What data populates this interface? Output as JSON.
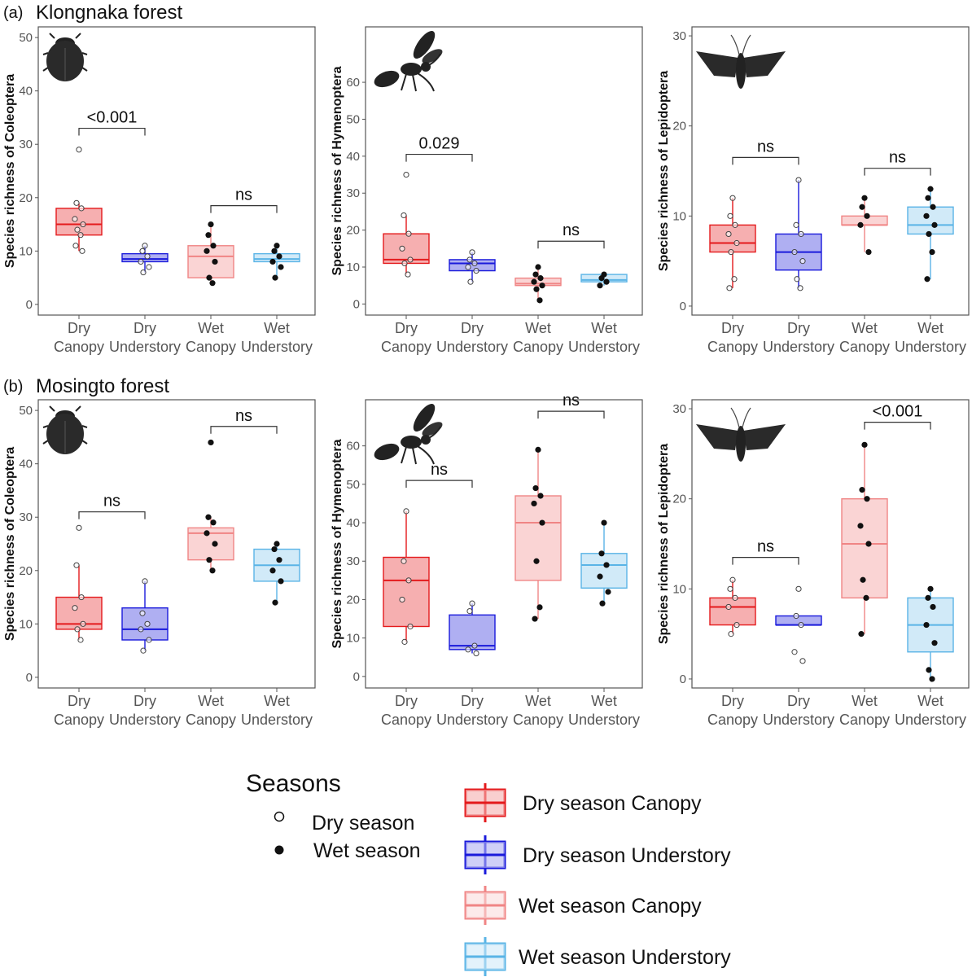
{
  "colors": {
    "dry_canopy": "#e41a1c",
    "dry_understory": "#1a1adb",
    "wet_canopy": "#f08585",
    "wet_understory": "#5ab4e6"
  },
  "row_titles": [
    {
      "letter": "(a)",
      "name": "Klongnaka forest"
    },
    {
      "letter": "(b)",
      "name": "Mosingto forest"
    }
  ],
  "category_labels": [
    [
      "Dry",
      "Canopy"
    ],
    [
      "Dry",
      "Understory"
    ],
    [
      "Wet",
      "Canopy"
    ],
    [
      "Wet",
      "Understory"
    ]
  ],
  "legend": {
    "title": "Seasons",
    "shape_items": [
      {
        "label": "Dry season",
        "shape": "open-circle"
      },
      {
        "label": "Wet season",
        "shape": "filled-circle"
      }
    ],
    "box_items": [
      {
        "label": "Dry season Canopy",
        "color_key": "dry_canopy"
      },
      {
        "label": "Dry season Understory",
        "color_key": "dry_understory"
      },
      {
        "label": "Wet season Canopy",
        "color_key": "wet_canopy"
      },
      {
        "label": "Wet season Understory",
        "color_key": "wet_understory"
      }
    ]
  },
  "chart_data": [
    {
      "type": "box",
      "panel": "(a) Klongnaka forest - Coleoptera",
      "icon": "beetle-icon",
      "ylabel": "Species richness of Coleoptera",
      "ylim": [
        -2,
        52
      ],
      "yticks": [
        0,
        10,
        20,
        30,
        40,
        50
      ],
      "groups": [
        {
          "name": "Dry Canopy",
          "q1": 13,
          "median": 15,
          "q3": 18,
          "whisker_low": 10,
          "whisker_high": 19,
          "points": [
            29,
            19,
            18,
            16,
            15,
            14,
            13,
            11,
            10
          ],
          "filled": false
        },
        {
          "name": "Dry Understory",
          "q1": 8,
          "median": 8.5,
          "q3": 9.5,
          "whisker_low": 6,
          "whisker_high": 11,
          "points": [
            11,
            10,
            9,
            8,
            7,
            6
          ],
          "filled": false
        },
        {
          "name": "Wet Canopy",
          "q1": 5,
          "median": 9,
          "q3": 11,
          "whisker_low": 4,
          "whisker_high": 15,
          "points": [
            15,
            13,
            11,
            10,
            8,
            5,
            4
          ],
          "filled": true
        },
        {
          "name": "Wet Understory",
          "q1": 8,
          "median": 8.5,
          "q3": 9.5,
          "whisker_low": 5,
          "whisker_high": 11,
          "points": [
            11,
            10,
            9,
            8,
            7,
            5
          ],
          "filled": true
        }
      ],
      "comparisons": [
        {
          "from": 0,
          "to": 1,
          "y": 33,
          "label": "<0.001"
        },
        {
          "from": 2,
          "to": 3,
          "y": 18.5,
          "label": "ns"
        }
      ]
    },
    {
      "type": "box",
      "panel": "(a) Klongnaka forest - Hymenoptera",
      "icon": "wasp-icon",
      "ylabel": "Species richness of Hymenoptera",
      "ylim": [
        -3,
        75
      ],
      "yticks": [
        0,
        10,
        20,
        30,
        40,
        50,
        60
      ],
      "groups": [
        {
          "name": "Dry Canopy",
          "q1": 11,
          "median": 12,
          "q3": 19,
          "whisker_low": 8,
          "whisker_high": 24,
          "points": [
            35,
            24,
            19,
            15,
            12,
            11,
            8
          ],
          "filled": false
        },
        {
          "name": "Dry Understory",
          "q1": 9,
          "median": 11,
          "q3": 12,
          "whisker_low": 6,
          "whisker_high": 14,
          "points": [
            14,
            12,
            11,
            10,
            9,
            6
          ],
          "filled": false
        },
        {
          "name": "Wet Canopy",
          "q1": 5,
          "median": 5.5,
          "q3": 7,
          "whisker_low": 1,
          "whisker_high": 10,
          "points": [
            10,
            8,
            7,
            6,
            5,
            4,
            1
          ],
          "filled": true
        },
        {
          "name": "Wet Understory",
          "q1": 6,
          "median": 6.5,
          "q3": 8,
          "whisker_low": 5,
          "whisker_high": 8,
          "points": [
            8,
            7,
            6,
            5
          ],
          "filled": true
        }
      ],
      "comparisons": [
        {
          "from": 0,
          "to": 1,
          "y": 40.5,
          "label": "0.029"
        },
        {
          "from": 2,
          "to": 3,
          "y": 17,
          "label": "ns"
        }
      ]
    },
    {
      "type": "box",
      "panel": "(a) Klongnaka forest - Lepidoptera",
      "icon": "moth-icon",
      "ylabel": "Species richness of Lepidoptera",
      "ylim": [
        -1,
        31
      ],
      "yticks": [
        0,
        10,
        20,
        30
      ],
      "groups": [
        {
          "name": "Dry Canopy",
          "q1": 6,
          "median": 7,
          "q3": 9,
          "whisker_low": 2,
          "whisker_high": 12,
          "points": [
            12,
            10,
            9,
            8,
            7,
            6,
            3,
            2
          ],
          "filled": false
        },
        {
          "name": "Dry Understory",
          "q1": 4,
          "median": 6,
          "q3": 8,
          "whisker_low": 2,
          "whisker_high": 14,
          "points": [
            14,
            9,
            8,
            6,
            5,
            3,
            2
          ],
          "filled": false
        },
        {
          "name": "Wet Canopy",
          "q1": 9,
          "median": 9,
          "q3": 10,
          "whisker_low": 6,
          "whisker_high": 12,
          "points": [
            12,
            11,
            10,
            9,
            6
          ],
          "filled": true
        },
        {
          "name": "Wet Understory",
          "q1": 8,
          "median": 9,
          "q3": 11,
          "whisker_low": 3,
          "whisker_high": 13,
          "points": [
            13,
            12,
            11,
            10,
            9,
            8,
            6,
            3
          ],
          "filled": true
        }
      ],
      "comparisons": [
        {
          "from": 0,
          "to": 1,
          "y": 16.5,
          "label": "ns"
        },
        {
          "from": 2,
          "to": 3,
          "y": 15.3,
          "label": "ns"
        }
      ]
    },
    {
      "type": "box",
      "panel": "(b) Mosingto forest - Coleoptera",
      "icon": "beetle-icon",
      "ylabel": "Species richness of Coleoptera",
      "ylim": [
        -2,
        52
      ],
      "yticks": [
        0,
        10,
        20,
        30,
        40,
        50
      ],
      "groups": [
        {
          "name": "Dry Canopy",
          "q1": 9,
          "median": 10,
          "q3": 15,
          "whisker_low": 7,
          "whisker_high": 21,
          "points": [
            28,
            21,
            15,
            13,
            10,
            9,
            7
          ],
          "filled": false
        },
        {
          "name": "Dry Understory",
          "q1": 7,
          "median": 9,
          "q3": 13,
          "whisker_low": 5,
          "whisker_high": 18,
          "points": [
            18,
            12,
            10,
            9,
            7,
            5
          ],
          "filled": false
        },
        {
          "name": "Wet Canopy",
          "q1": 22,
          "median": 27,
          "q3": 28,
          "whisker_low": 20,
          "whisker_high": 30,
          "points": [
            44,
            30,
            29,
            27,
            25,
            22,
            20
          ],
          "filled": true
        },
        {
          "name": "Wet Understory",
          "q1": 18,
          "median": 21,
          "q3": 24,
          "whisker_low": 14,
          "whisker_high": 25,
          "points": [
            25,
            24,
            22,
            20,
            18,
            14
          ],
          "filled": true
        }
      ],
      "comparisons": [
        {
          "from": 0,
          "to": 1,
          "y": 31,
          "label": "ns"
        },
        {
          "from": 2,
          "to": 3,
          "y": 47,
          "label": "ns"
        }
      ]
    },
    {
      "type": "box",
      "panel": "(b) Mosingto forest - Hymenoptera",
      "icon": "wasp-icon",
      "ylabel": "Species richness of Hymenoptera",
      "ylim": [
        -3,
        72
      ],
      "yticks": [
        0,
        10,
        20,
        30,
        40,
        50,
        60
      ],
      "groups": [
        {
          "name": "Dry Canopy",
          "q1": 13,
          "median": 25,
          "q3": 31,
          "whisker_low": 9,
          "whisker_high": 43,
          "points": [
            43,
            30,
            25,
            20,
            13,
            9
          ],
          "filled": false
        },
        {
          "name": "Dry Understory",
          "q1": 7,
          "median": 8,
          "q3": 16,
          "whisker_low": 6,
          "whisker_high": 19,
          "points": [
            19,
            17,
            8,
            7,
            6
          ],
          "filled": false
        },
        {
          "name": "Wet Canopy",
          "q1": 25,
          "median": 40,
          "q3": 47,
          "whisker_low": 15,
          "whisker_high": 59,
          "points": [
            59,
            49,
            47,
            45,
            40,
            30,
            18,
            15
          ],
          "filled": true
        },
        {
          "name": "Wet Understory",
          "q1": 23,
          "median": 29,
          "q3": 32,
          "whisker_low": 19,
          "whisker_high": 40,
          "points": [
            40,
            32,
            29,
            26,
            22,
            19
          ],
          "filled": true
        }
      ],
      "comparisons": [
        {
          "from": 0,
          "to": 1,
          "y": 51,
          "label": "ns"
        },
        {
          "from": 2,
          "to": 3,
          "y": 69,
          "label": "ns"
        }
      ]
    },
    {
      "type": "box",
      "panel": "(b) Mosingto forest - Lepidoptera",
      "icon": "moth-icon",
      "ylabel": "Species richness of Lepidoptera",
      "ylim": [
        -1,
        31
      ],
      "yticks": [
        0,
        10,
        20,
        30
      ],
      "groups": [
        {
          "name": "Dry Canopy",
          "q1": 6,
          "median": 8,
          "q3": 9,
          "whisker_low": 5,
          "whisker_high": 11,
          "points": [
            11,
            10,
            9,
            8,
            6,
            5
          ],
          "filled": false
        },
        {
          "name": "Dry Understory",
          "q1": 6,
          "median": 6,
          "q3": 7,
          "whisker_low": 6,
          "whisker_high": 7,
          "points": [
            10,
            7,
            6,
            3,
            2
          ],
          "filled": false
        },
        {
          "name": "Wet Canopy",
          "q1": 9,
          "median": 15,
          "q3": 20,
          "whisker_low": 5,
          "whisker_high": 26,
          "points": [
            26,
            21,
            20,
            17,
            15,
            11,
            9,
            5
          ],
          "filled": true
        },
        {
          "name": "Wet Understory",
          "q1": 3,
          "median": 6,
          "q3": 9,
          "whisker_low": 0,
          "whisker_high": 10,
          "points": [
            10,
            9,
            8,
            6,
            4,
            1,
            0
          ],
          "filled": true
        }
      ],
      "comparisons": [
        {
          "from": 0,
          "to": 1,
          "y": 13.5,
          "label": "ns"
        },
        {
          "from": 2,
          "to": 3,
          "y": 28.5,
          "label": "<0.001"
        }
      ]
    }
  ]
}
